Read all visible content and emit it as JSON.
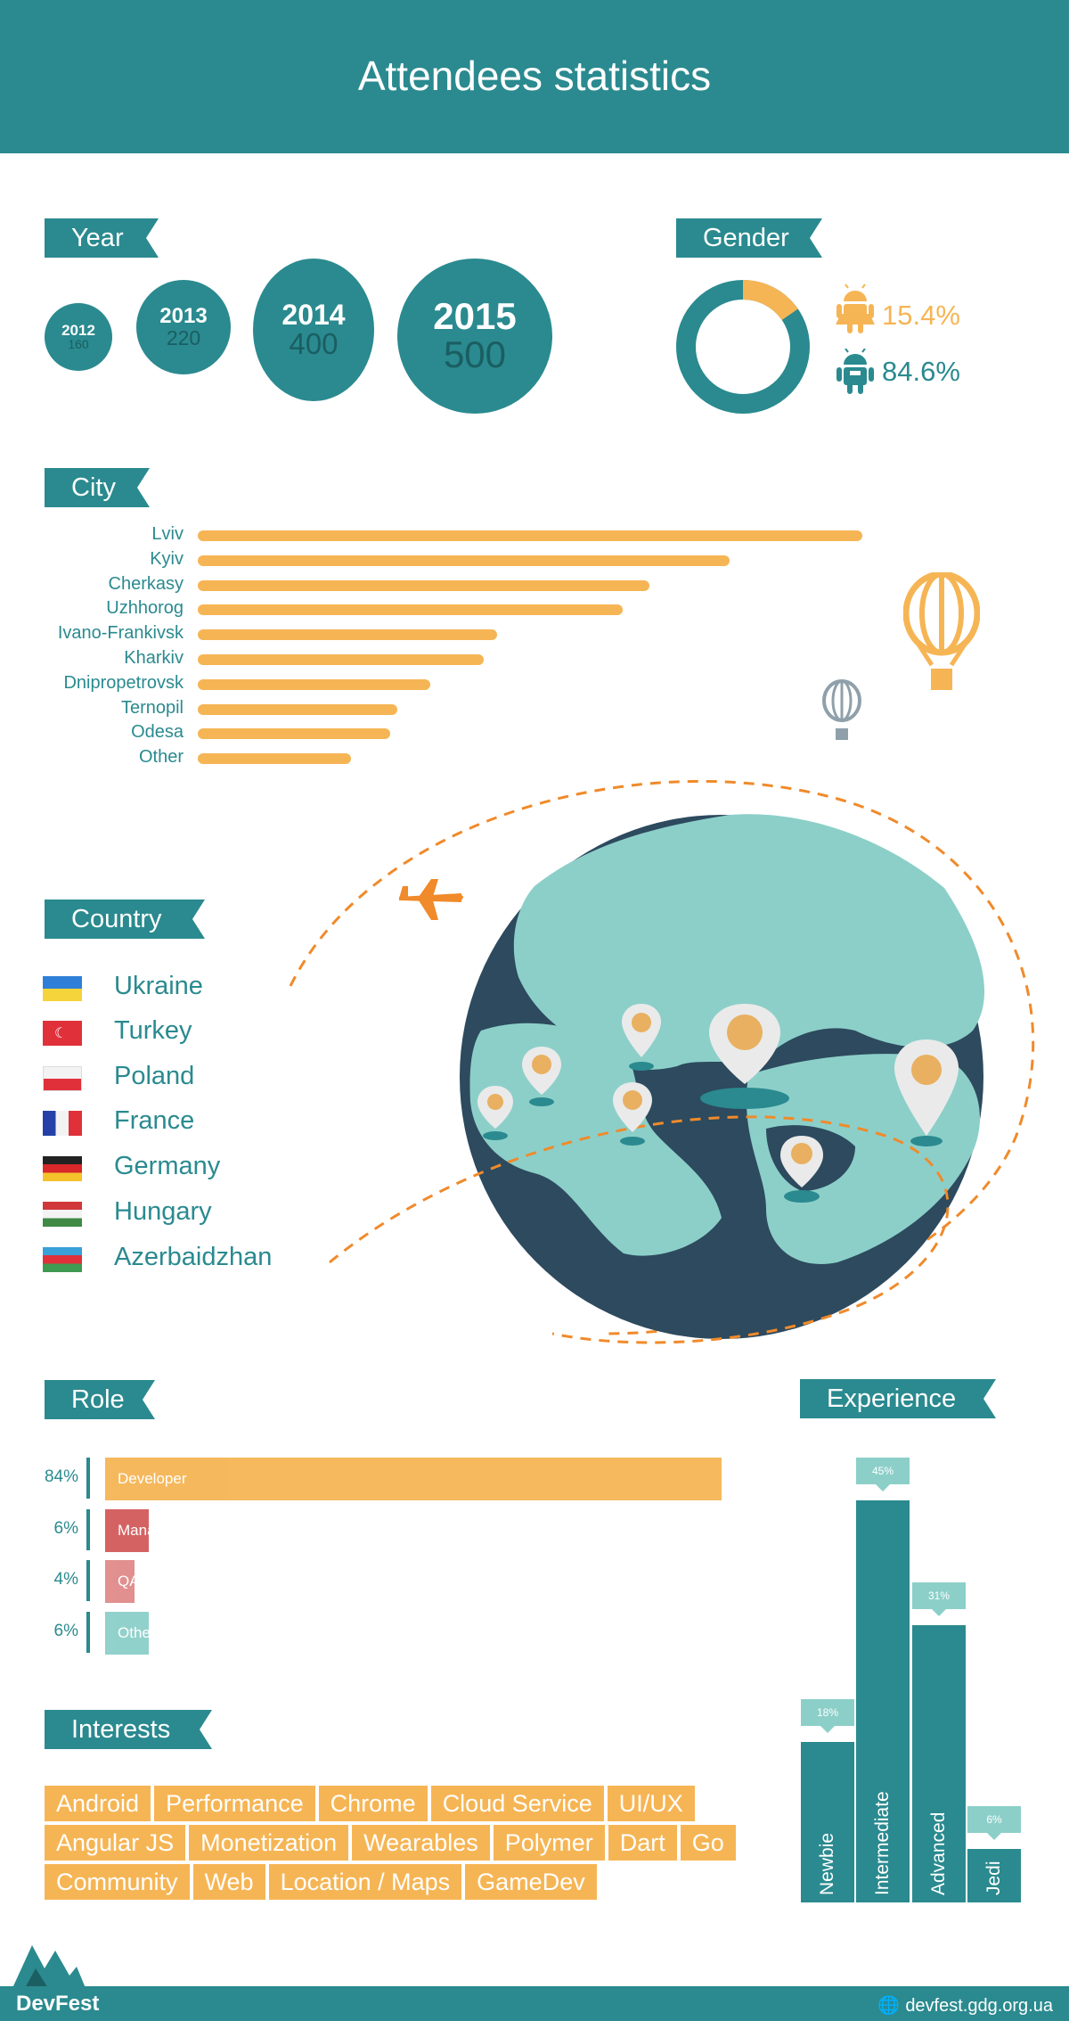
{
  "title": "Attendees statistics",
  "sections": {
    "year": "Year",
    "gender": "Gender",
    "city": "City",
    "country": "Country",
    "role": "Role",
    "experience": "Experience",
    "interests": "Interests"
  },
  "colors": {
    "teal": "#2a8a8f",
    "orange": "#f6b554",
    "red": "#d35a5a",
    "pink": "#e08a8a",
    "mint": "#8ccfc9",
    "navy": "#2d4a5e"
  },
  "years": [
    {
      "year": "2012",
      "count": "160"
    },
    {
      "year": "2013",
      "count": "220"
    },
    {
      "year": "2014",
      "count": "400"
    },
    {
      "year": "2015",
      "count": "500"
    }
  ],
  "gender": {
    "female": {
      "label": "15.4%",
      "value": 15.4,
      "icon": "android-female-icon"
    },
    "male": {
      "label": "84.6%",
      "value": 84.6,
      "icon": "android-male-icon"
    }
  },
  "chart_data": [
    {
      "type": "bar",
      "orientation": "horizontal",
      "categories": [
        "Lviv",
        "Kyiv",
        "Cherkasy",
        "Uzhhorog",
        "Ivano-Frankivsk",
        "Kharkiv",
        "Dnipropetrovsk",
        "Ternopil",
        "Odesa",
        "Other"
      ],
      "values": [
        100,
        80,
        68,
        64,
        45,
        43,
        35,
        30,
        29,
        23
      ]
    },
    {
      "type": "pie",
      "categories": [
        "female",
        "male"
      ],
      "values": [
        15.4,
        84.6
      ]
    },
    {
      "type": "bar",
      "orientation": "horizontal",
      "categories": [
        "Developer",
        "Management",
        "QA",
        "Other"
      ],
      "values": [
        84,
        6,
        4,
        6
      ],
      "value_labels": [
        "84%",
        "6%",
        "4%",
        "6%"
      ]
    },
    {
      "type": "bar",
      "categories": [
        "Newbie",
        "Intermediate",
        "Advanced",
        "Jedi"
      ],
      "values": [
        18,
        45,
        31,
        6
      ],
      "value_labels": [
        "18%",
        "45%",
        "31%",
        "6%"
      ]
    }
  ],
  "countries": [
    {
      "name": "Ukraine",
      "flag": "ukraine-flag"
    },
    {
      "name": "Turkey",
      "flag": "turkey-flag"
    },
    {
      "name": "Poland",
      "flag": "poland-flag"
    },
    {
      "name": "France",
      "flag": "france-flag"
    },
    {
      "name": "Germany",
      "flag": "germany-flag"
    },
    {
      "name": "Hungary",
      "flag": "hungary-flag"
    },
    {
      "name": "Azerbaidzhan",
      "flag": "azerbaijan-flag"
    }
  ],
  "interests": [
    "Android",
    "Performance",
    "Chrome",
    "Cloud Service",
    "UI/UX",
    "Angular JS",
    "Monetization",
    "Wearables",
    "Polymer",
    "Dart",
    "Go",
    "Community",
    "Web",
    "Location / Maps",
    "GameDev"
  ],
  "footer": {
    "brand": "DevFest",
    "site": "devfest.gdg.org.ua"
  }
}
